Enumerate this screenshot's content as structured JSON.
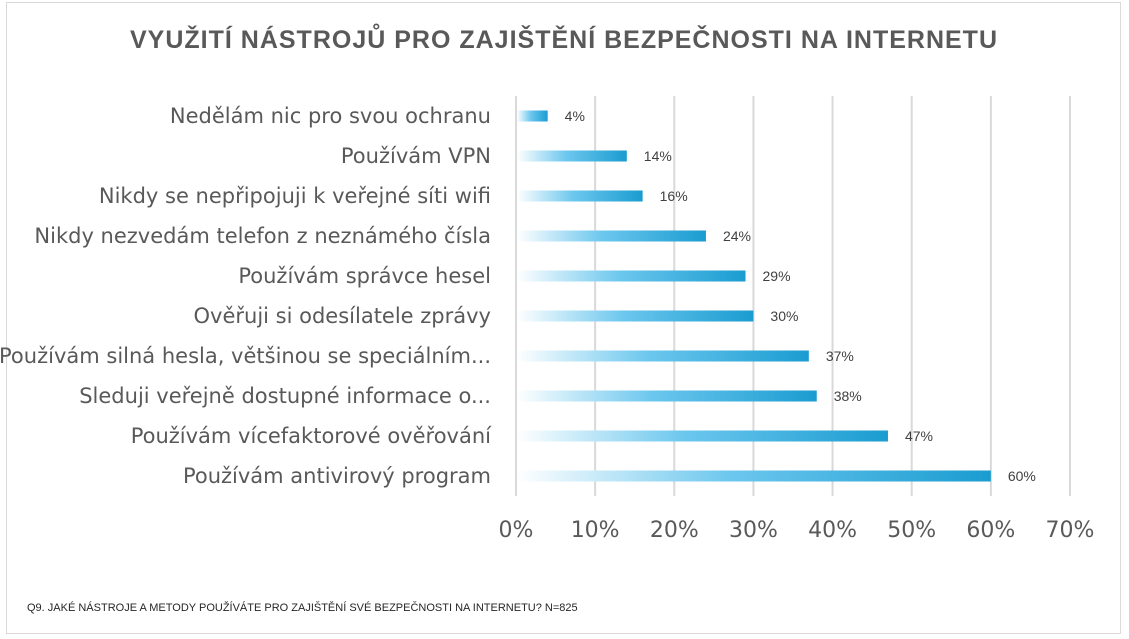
{
  "chart_data": {
    "type": "bar",
    "orientation": "horizontal",
    "title": "VYUŽITÍ NÁSTROJŮ PRO ZAJIŠTĚNÍ BEZPEČNOSTI NA INTERNETU",
    "categories": [
      "Nedělám nic pro svou ochranu",
      "Používám VPN",
      "Nikdy se nepřipojuji k veřejné síti wifi",
      "Nikdy nezvedám telefon z neznámého čísla",
      "Používám správce hesel",
      "Ověřuji si odesílatele zprávy",
      "Používám silná hesla, většinou se speciálním...",
      "Sleduji veřejně dostupné informace o...",
      "Používám vícefaktorové ověřování",
      "Používám antivirový program"
    ],
    "values": [
      4,
      14,
      16,
      24,
      29,
      30,
      37,
      38,
      47,
      60
    ],
    "data_labels": [
      "4%",
      "14%",
      "16%",
      "24%",
      "29%",
      "30%",
      "37%",
      "38%",
      "47%",
      "60%"
    ],
    "xlim": [
      0,
      70
    ],
    "xticks": [
      0,
      10,
      20,
      30,
      40,
      50,
      60,
      70
    ],
    "xtick_labels": [
      "0%",
      "10%",
      "20%",
      "30%",
      "40%",
      "50%",
      "60%",
      "70%"
    ],
    "grid": true,
    "legend": "none",
    "bar_color": "#1a9cd0",
    "grid_color": "#d9d9d9"
  },
  "footnote": "Q9. JAKÉ NÁSTROJE A METODY POUŽÍVÁTE PRO ZAJIŠTĚNÍ SVÉ BEZPEČNOSTI NA INTERNETU? N=825"
}
